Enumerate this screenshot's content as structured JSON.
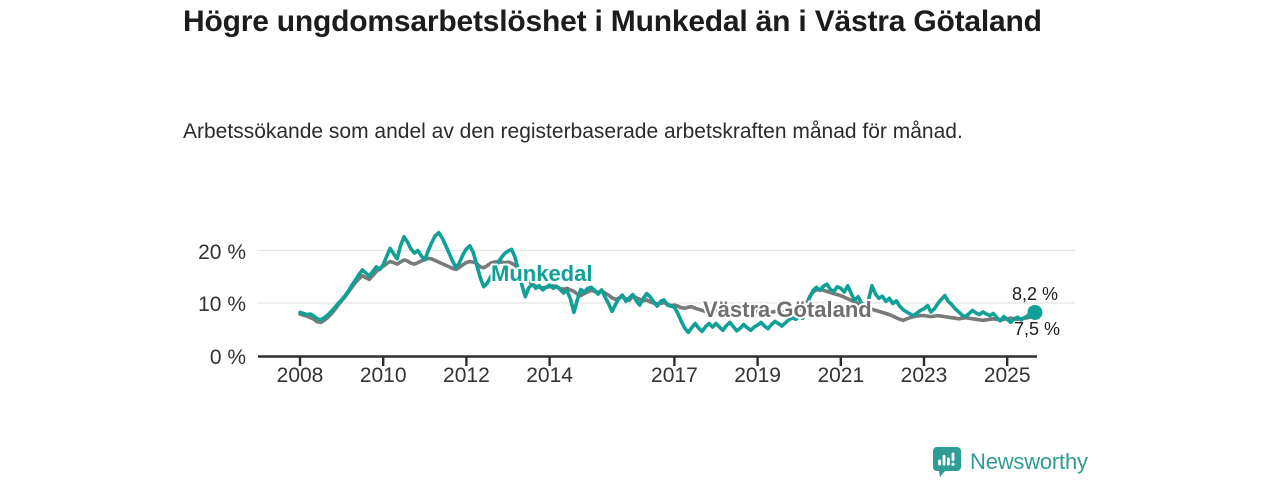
{
  "header": {
    "title": "Högre ungdomsarbetslöshet i Munkedal än i Västra Götaland",
    "subtitle": "Arbetssökande som andel av den registerbaserade arbetskraften månad för månad."
  },
  "chart_data": {
    "type": "line",
    "x_start_year": 2008,
    "x_step_months": 1,
    "x_tick_labels": [
      "2008",
      "2010",
      "2012",
      "2014",
      "2017",
      "2019",
      "2021",
      "2023",
      "2025"
    ],
    "y_ticks": [
      {
        "value": 0,
        "label": "0 %"
      },
      {
        "value": 10,
        "label": "10 %"
      },
      {
        "value": 20,
        "label": "20 %"
      }
    ],
    "ylim": [
      0,
      24
    ],
    "grid": "horizontal",
    "legend_position": "inline-labels",
    "series": [
      {
        "name": "Munkedal",
        "color": "#10A098",
        "end_label": "8,2 %",
        "end_value": 8.2,
        "end_dot": true,
        "values": [
          8.2,
          8.0,
          7.8,
          7.9,
          7.5,
          7.0,
          6.8,
          7.2,
          7.7,
          8.4,
          9.1,
          9.9,
          10.6,
          11.4,
          12.3,
          13.4,
          14.4,
          15.4,
          16.3,
          15.7,
          15.1,
          16.0,
          16.9,
          16.4,
          17.3,
          18.9,
          20.4,
          19.4,
          18.4,
          20.9,
          22.6,
          21.6,
          20.3,
          19.5,
          20.0,
          19.0,
          18.2,
          20.0,
          21.5,
          22.8,
          23.4,
          22.4,
          21.0,
          19.5,
          18.0,
          16.7,
          17.7,
          19.2,
          20.3,
          20.9,
          19.6,
          17.2,
          14.8,
          13.1,
          13.8,
          15.0,
          16.2,
          17.5,
          18.6,
          19.4,
          19.9,
          20.2,
          18.8,
          16.2,
          13.4,
          11.2,
          12.9,
          13.6,
          12.8,
          13.3,
          12.5,
          13.0,
          13.4,
          12.8,
          13.2,
          12.6,
          11.9,
          12.4,
          10.8,
          8.2,
          10.6,
          12.6,
          12.1,
          12.8,
          13.0,
          12.4,
          11.7,
          12.5,
          11.1,
          9.9,
          8.4,
          9.7,
          10.9,
          11.5,
          10.3,
          11.0,
          11.6,
          10.4,
          9.6,
          10.9,
          11.8,
          11.2,
          10.2,
          9.4,
          10.3,
          10.6,
          9.6,
          9.4,
          9.2,
          8.0,
          6.5,
          5.2,
          4.4,
          5.3,
          6.1,
          5.2,
          4.6,
          5.5,
          6.1,
          5.4,
          6.1,
          5.4,
          4.8,
          5.7,
          6.3,
          5.5,
          4.7,
          5.2,
          5.9,
          5.3,
          4.8,
          5.4,
          5.8,
          6.3,
          5.6,
          5.1,
          5.9,
          6.5,
          6.1,
          5.6,
          6.2,
          6.8,
          7.2,
          6.9,
          7.4,
          7.1,
          8.8,
          11.0,
          12.4,
          13.0,
          12.4,
          13.2,
          13.6,
          12.6,
          12.2,
          13.1,
          12.8,
          12.1,
          13.3,
          11.8,
          10.5,
          11.2,
          9.9,
          9.4,
          10.6,
          13.3,
          11.7,
          10.9,
          11.3,
          10.3,
          10.9,
          9.9,
          10.4,
          9.4,
          8.7,
          8.3,
          7.9,
          7.6,
          8.1,
          8.6,
          8.9,
          9.5,
          8.3,
          8.9,
          9.9,
          10.7,
          11.4,
          10.3,
          9.7,
          8.9,
          8.3,
          7.7,
          7.4,
          8.0,
          8.6,
          8.1,
          7.8,
          8.3,
          7.9,
          7.6,
          8.0,
          7.2,
          6.6,
          7.4,
          6.9,
          6.3,
          7.0,
          7.3,
          6.8,
          7.2,
          7.6,
          7.9,
          8.2
        ]
      },
      {
        "name": "Västra Götaland",
        "color": "#7A7A7A",
        "end_label": "7,5 %",
        "end_value": 7.5,
        "end_dot": false,
        "values": [
          7.9,
          7.7,
          7.5,
          7.2,
          6.9,
          6.4,
          6.3,
          6.7,
          7.2,
          7.9,
          8.7,
          9.6,
          10.4,
          11.2,
          12.1,
          13.0,
          13.9,
          14.6,
          15.2,
          14.8,
          14.5,
          15.2,
          16.0,
          16.6,
          17.0,
          17.5,
          17.9,
          17.7,
          17.4,
          17.8,
          18.2,
          18.0,
          17.6,
          17.4,
          17.7,
          18.0,
          18.3,
          18.5,
          18.4,
          18.1,
          17.8,
          17.5,
          17.2,
          16.9,
          16.6,
          16.4,
          16.8,
          17.3,
          17.7,
          17.9,
          17.8,
          17.5,
          16.9,
          16.7,
          17.1,
          17.6,
          17.8,
          17.9,
          17.8,
          17.7,
          17.8,
          17.6,
          17.2,
          16.5,
          15.7,
          14.9,
          14.2,
          13.6,
          13.2,
          13.0,
          12.9,
          13.0,
          13.1,
          13.3,
          13.0,
          12.8,
          12.6,
          12.8,
          12.5,
          12.2,
          11.7,
          11.4,
          11.8,
          12.1,
          12.4,
          12.2,
          12.0,
          12.3,
          11.9,
          11.5,
          11.0,
          10.7,
          10.9,
          11.2,
          10.8,
          10.5,
          11.4,
          11.0,
          10.7,
          10.4,
          10.6,
          10.2,
          10.0,
          9.8,
          9.9,
          10.1,
          9.8,
          9.5,
          9.6,
          9.4,
          9.1,
          9.0,
          9.2,
          9.3,
          9.0,
          8.8,
          8.6,
          8.4,
          8.3,
          8.5,
          8.7,
          8.5,
          8.2,
          8.0,
          8.2,
          8.4,
          8.1,
          7.9,
          8.0,
          8.2,
          8.1,
          8.3,
          8.4,
          8.3,
          8.1,
          8.0,
          8.2,
          8.4,
          8.3,
          8.2,
          8.3,
          8.5,
          8.6,
          8.7,
          8.9,
          8.8,
          9.6,
          11.2,
          12.1,
          12.5,
          12.6,
          12.4,
          12.2,
          12.0,
          11.8,
          11.6,
          11.4,
          11.1,
          10.8,
          10.5,
          10.2,
          9.9,
          9.6,
          9.3,
          9.0,
          8.8,
          8.6,
          8.4,
          8.2,
          8.0,
          7.8,
          7.5,
          7.2,
          6.9,
          6.7,
          7.0,
          7.2,
          7.4,
          7.5,
          7.6,
          7.6,
          7.5,
          7.4,
          7.5,
          7.6,
          7.5,
          7.4,
          7.3,
          7.2,
          7.1,
          7.0,
          7.1,
          7.2,
          7.1,
          7.0,
          6.9,
          6.8,
          6.7,
          6.8,
          6.9,
          7.0,
          6.9,
          6.8,
          6.9,
          7.0,
          7.1,
          7.0,
          6.9,
          7.0,
          7.1,
          7.2,
          7.4,
          7.5
        ]
      }
    ],
    "colors": {
      "grid": "#e3e3e3",
      "axis": "#2e2e2e",
      "tick_text": "#333333",
      "end_label_text": "#1c1c1c",
      "series_label_gray": "#6f6f6f"
    }
  },
  "footer": {
    "brand": "Newsworthy",
    "brand_color": "#2f9c95"
  }
}
